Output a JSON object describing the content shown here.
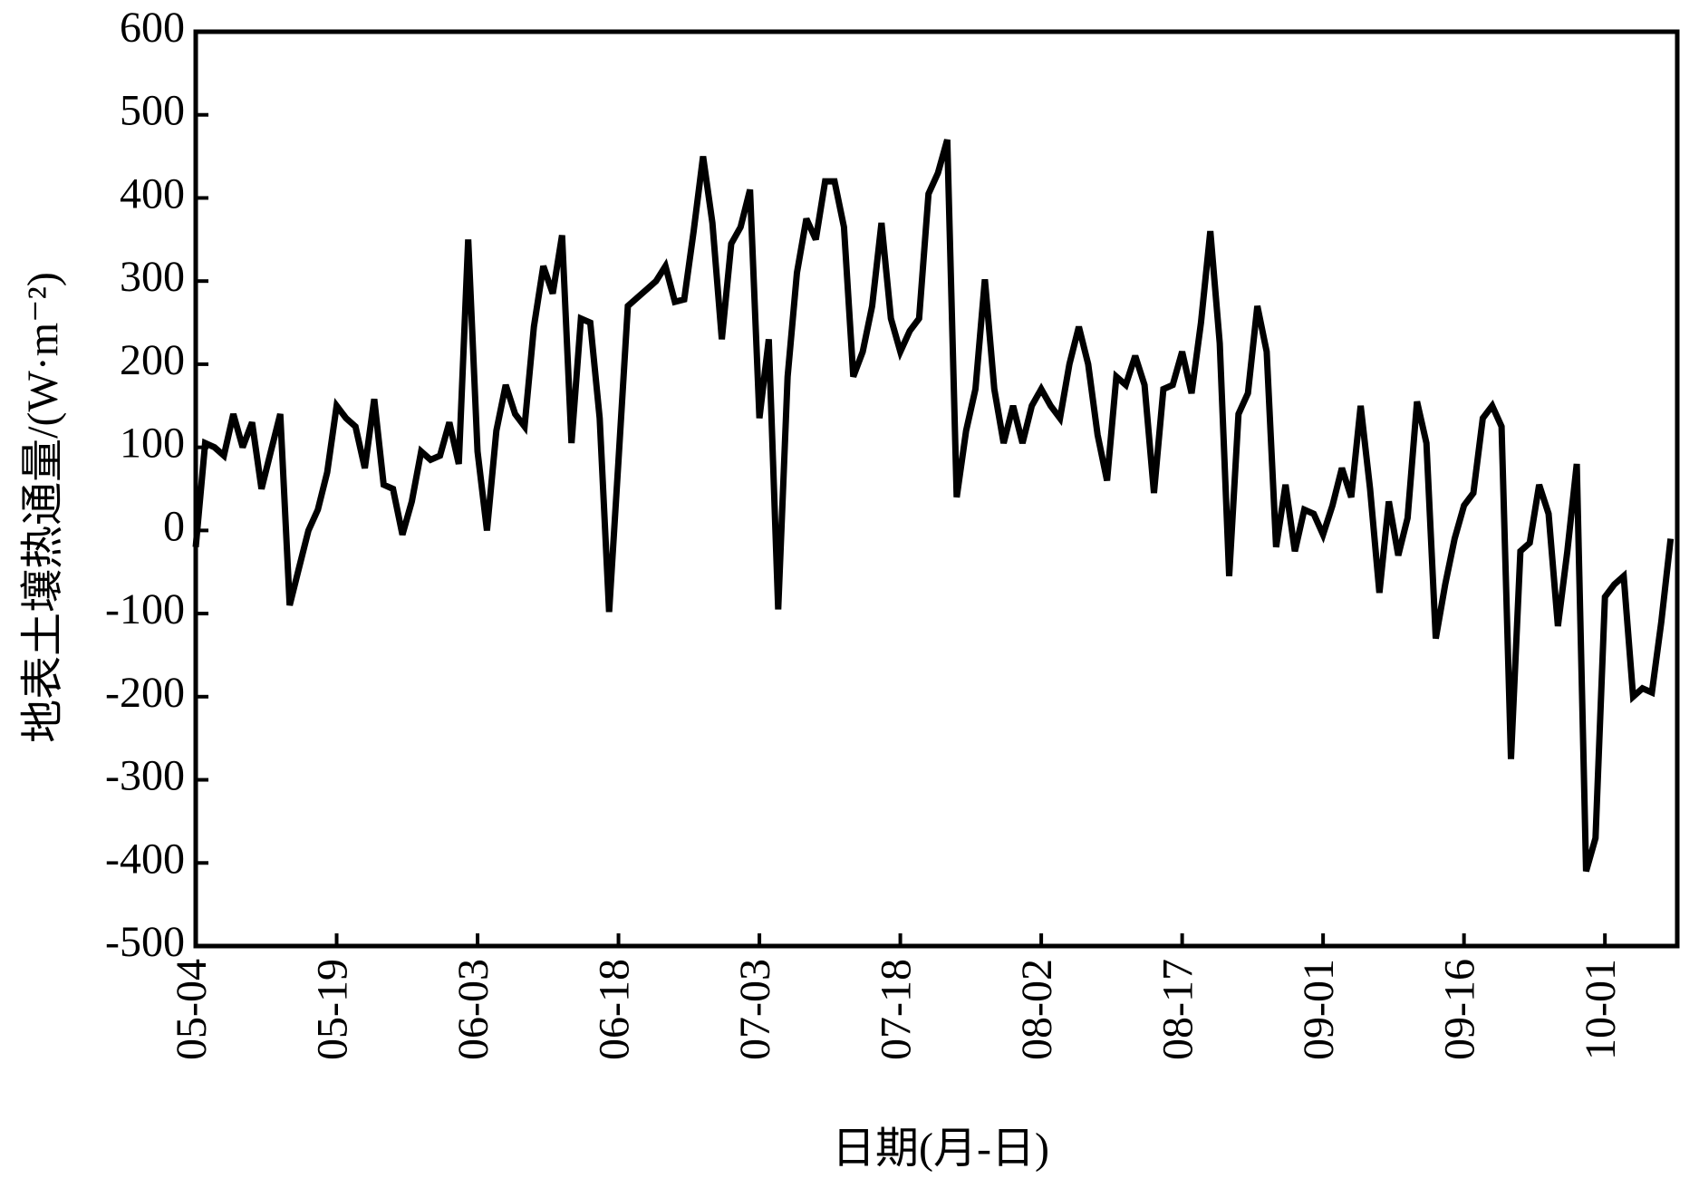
{
  "chart_data": {
    "type": "line",
    "x_label": "日期(月-日)",
    "y_label": "地表土壤热通量/(W·m⁻²)",
    "color": "#000000",
    "categories": [
      "05-04",
      null,
      null,
      null,
      null,
      null,
      null,
      null,
      null,
      null,
      null,
      null,
      null,
      null,
      null,
      "05-19",
      null,
      null,
      null,
      null,
      null,
      null,
      null,
      null,
      null,
      null,
      null,
      null,
      null,
      null,
      "06-03",
      null,
      null,
      null,
      null,
      null,
      null,
      null,
      null,
      null,
      null,
      null,
      null,
      null,
      null,
      "06-18",
      null,
      null,
      null,
      null,
      null,
      null,
      null,
      null,
      null,
      null,
      null,
      null,
      null,
      null,
      "07-03",
      null,
      null,
      null,
      null,
      null,
      null,
      null,
      null,
      null,
      null,
      null,
      null,
      null,
      null,
      "07-18",
      null,
      null,
      null,
      null,
      null,
      null,
      null,
      null,
      null,
      null,
      null,
      null,
      null,
      null,
      "08-02",
      null,
      null,
      null,
      null,
      null,
      null,
      null,
      null,
      null,
      null,
      null,
      null,
      null,
      null,
      "08-17",
      null,
      null,
      null,
      null,
      null,
      null,
      null,
      null,
      null,
      null,
      null,
      null,
      null,
      null,
      "09-01",
      null,
      null,
      null,
      null,
      null,
      null,
      null,
      null,
      null,
      null,
      null,
      null,
      null,
      null,
      "09-16",
      null,
      null,
      null,
      null,
      null,
      null,
      null,
      null,
      null,
      null,
      null,
      null,
      null,
      null,
      "10-01",
      null,
      null,
      null,
      null,
      null,
      null,
      null
    ],
    "values": [
      -20,
      105,
      100,
      90,
      140,
      100,
      130,
      50,
      95,
      140,
      -90,
      -45,
      0,
      25,
      70,
      150,
      135,
      125,
      75,
      158,
      55,
      50,
      -5,
      35,
      95,
      85,
      90,
      130,
      80,
      350,
      95,
      0,
      120,
      175,
      140,
      125,
      245,
      318,
      285,
      355,
      105,
      255,
      250,
      135,
      -98,
      85,
      270,
      280,
      290,
      300,
      318,
      275,
      278,
      360,
      450,
      370,
      230,
      345,
      365,
      410,
      135,
      230,
      -95,
      185,
      310,
      375,
      350,
      420,
      420,
      365,
      185,
      215,
      270,
      370,
      255,
      215,
      240,
      255,
      405,
      430,
      470,
      40,
      120,
      170,
      302,
      170,
      105,
      150,
      105,
      150,
      170,
      150,
      135,
      200,
      245,
      200,
      115,
      60,
      185,
      175,
      210,
      175,
      45,
      170,
      175,
      215,
      165,
      250,
      360,
      225,
      -55,
      140,
      165,
      270,
      215,
      -20,
      55,
      -25,
      25,
      20,
      -5,
      30,
      75,
      40,
      150,
      50,
      -75,
      35,
      -30,
      15,
      155,
      105,
      -130,
      -65,
      -10,
      30,
      45,
      135,
      150,
      125,
      -275,
      -25,
      -15,
      55,
      20,
      -115,
      -25,
      80,
      -410,
      -370,
      -80,
      -65,
      -55,
      -200,
      -190,
      -195,
      -110,
      -10
    ],
    "ylim": [
      -500,
      600
    ],
    "yticks": [
      -500,
      -400,
      -300,
      -200,
      -100,
      0,
      100,
      200,
      300,
      400,
      500,
      600
    ]
  }
}
